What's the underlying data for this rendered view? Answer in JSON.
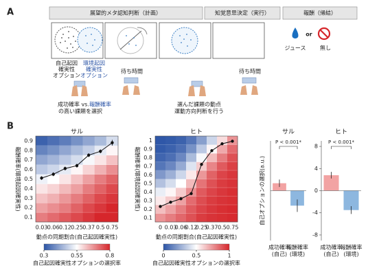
{
  "panel_a": {
    "label": "A",
    "headers": [
      "展望的メタ認知判断（計画）",
      "知覚意思決定（実行）",
      "報酬（帰結）"
    ],
    "self_option": [
      "自己起因",
      "確実性",
      "オプション"
    ],
    "env_option": [
      "環境起因",
      "確実性",
      "オプション"
    ],
    "wait": [
      "待ち時間",
      "待ち時間"
    ],
    "choose": [
      "成功確率 vs. ",
      "報酬確率",
      "の高い課題を選択"
    ],
    "execute": [
      "選んだ課題の動点",
      "運動方向判断を行う"
    ],
    "juice": "ジュース",
    "or": "or",
    "none": "無し"
  },
  "panel_b_label": "B",
  "chart_data": [
    {
      "type": "heatmap",
      "title": "サル",
      "x_label": "動点の同期割合(自己起因確実性)",
      "y_label": "報酬確率(環境起因確実性)",
      "categories": [
        0.03,
        0.06,
        0.12,
        0.25,
        0.37,
        0.5,
        0.75
      ],
      "ylim": [
        0.05,
        0.95
      ],
      "yticks": [
        0.1,
        0.2,
        0.3,
        0.4,
        0.5,
        0.6,
        0.7,
        0.8,
        0.9
      ],
      "z": [
        [
          0.7,
          0.72,
          0.74,
          0.76,
          0.78,
          0.8,
          0.8
        ],
        [
          0.66,
          0.68,
          0.7,
          0.73,
          0.76,
          0.78,
          0.8
        ],
        [
          0.62,
          0.64,
          0.67,
          0.7,
          0.73,
          0.76,
          0.78
        ],
        [
          0.58,
          0.6,
          0.63,
          0.66,
          0.7,
          0.73,
          0.76
        ],
        [
          0.53,
          0.55,
          0.58,
          0.62,
          0.66,
          0.7,
          0.73
        ],
        [
          0.47,
          0.49,
          0.52,
          0.56,
          0.6,
          0.64,
          0.68
        ],
        [
          0.42,
          0.44,
          0.47,
          0.5,
          0.54,
          0.58,
          0.62
        ],
        [
          0.37,
          0.39,
          0.42,
          0.45,
          0.48,
          0.52,
          0.56
        ],
        [
          0.32,
          0.34,
          0.36,
          0.39,
          0.42,
          0.45,
          0.5
        ]
      ],
      "line": {
        "color": "#111111",
        "values": [
          0.51,
          0.55,
          0.61,
          0.64,
          0.75,
          0.79,
          0.88
        ],
        "errors": [
          0.02,
          0.02,
          0.02,
          0.02,
          0.02,
          0.02,
          0.03
        ]
      },
      "colorbar": {
        "label": "自己起因確実性オプションの選択率",
        "lim": [
          0.3,
          0.8
        ],
        "ticks": [
          0.3,
          0.55,
          0.8
        ],
        "colors": [
          "#2b54a6",
          "#ffffff",
          "#d6262b"
        ]
      }
    },
    {
      "type": "heatmap",
      "title": "ヒト",
      "x_label": "動点の同期割合(自己起因確実性)",
      "y_label": "報酬確率(環境起因確実性)",
      "categories": [
        0,
        0.03,
        0.06,
        0.12,
        0.25,
        0.37,
        0.5,
        0.75
      ],
      "ylim": [
        0.05,
        1.05
      ],
      "yticks": [
        0.1,
        0.2,
        0.3,
        0.4,
        0.5,
        0.6,
        0.7,
        0.8,
        0.9,
        1
      ],
      "z": [
        [
          0.75,
          0.8,
          0.85,
          0.9,
          0.95,
          0.97,
          0.98,
          0.99
        ],
        [
          0.65,
          0.72,
          0.8,
          0.88,
          0.93,
          0.96,
          0.98,
          0.99
        ],
        [
          0.55,
          0.62,
          0.72,
          0.84,
          0.91,
          0.95,
          0.97,
          0.98
        ],
        [
          0.45,
          0.52,
          0.62,
          0.76,
          0.88,
          0.93,
          0.96,
          0.98
        ],
        [
          0.32,
          0.4,
          0.5,
          0.66,
          0.82,
          0.9,
          0.95,
          0.97
        ],
        [
          0.2,
          0.27,
          0.38,
          0.55,
          0.74,
          0.86,
          0.93,
          0.96
        ],
        [
          0.1,
          0.15,
          0.25,
          0.42,
          0.62,
          0.78,
          0.88,
          0.94
        ],
        [
          0.05,
          0.08,
          0.15,
          0.3,
          0.48,
          0.66,
          0.8,
          0.9
        ],
        [
          0.02,
          0.04,
          0.08,
          0.18,
          0.34,
          0.52,
          0.7,
          0.84
        ],
        [
          0.01,
          0.02,
          0.04,
          0.1,
          0.22,
          0.38,
          0.58,
          0.75
        ]
      ],
      "line": {
        "color": "#111111",
        "values": [
          0.23,
          0.28,
          0.32,
          0.38,
          0.72,
          0.88,
          0.96,
          0.99
        ],
        "errors": [
          0.01,
          0.01,
          0.01,
          0.01,
          0.01,
          0.01,
          0.01,
          0.01
        ]
      },
      "colorbar": {
        "label": "自己起因確実性オプションの選択率",
        "lim": [
          0,
          1
        ],
        "ticks": [
          0,
          0.5,
          1
        ],
        "colors": [
          "#2b54a6",
          "#ffffff",
          "#d6262b"
        ]
      }
    },
    {
      "type": "bar",
      "title": "サル",
      "y_label": "自己オプションの選択(a.u.)",
      "categories": [
        [
          "成功確率",
          "(自己)"
        ],
        [
          "報酬確率",
          "(環境)"
        ]
      ],
      "values": [
        0.6,
        -1.2
      ],
      "errors": [
        0.3,
        0.5
      ],
      "colors": [
        "#f2a3a3",
        "#8db7df"
      ],
      "ylim": [
        -4,
        4
      ],
      "annotation": "P < 0.001*"
    },
    {
      "type": "bar",
      "title": "ヒト",
      "categories": [
        [
          "成功確率",
          "(自己)"
        ],
        [
          "報酬確率",
          "(環境)"
        ]
      ],
      "values": [
        2.8,
        -3.5
      ],
      "errors": [
        0.6,
        0.7
      ],
      "colors": [
        "#f2a3a3",
        "#8db7df"
      ],
      "ylim": [
        -9,
        9
      ],
      "yticks": [
        -8,
        -4,
        0,
        4,
        8
      ],
      "annotation": "P < 0.001*"
    }
  ]
}
